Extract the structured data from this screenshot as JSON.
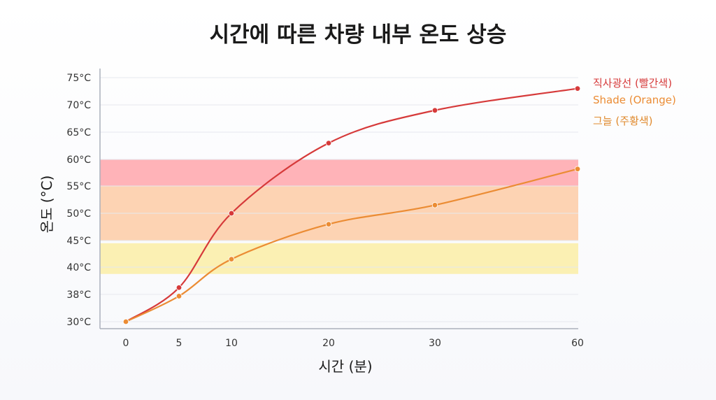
{
  "chart_data": {
    "type": "line",
    "title": "시간에 따른 차량 내부 온도 상승",
    "xlabel": "시간 (분)",
    "ylabel": "온도 (°C)",
    "x": [
      0,
      5,
      10,
      20,
      30,
      60
    ],
    "x_tick_labels": [
      "0",
      "5",
      "10",
      "20",
      "30",
      "60"
    ],
    "y_tick_labels": [
      "30°C",
      "38°C",
      "40°C",
      "45°C",
      "50°C",
      "55°C",
      "60°C",
      "65°C",
      "70°C",
      "75°C"
    ],
    "series": [
      {
        "name": "직사광선 (빨간색)",
        "color": "#d63a3a",
        "values": [
          30,
          38.5,
          50,
          63,
          69,
          73
        ]
      },
      {
        "name": "Shade (Orange)",
        "color": "#eb8c34",
        "values": [
          30,
          37.5,
          41.5,
          48,
          51.5,
          58.2
        ]
      }
    ],
    "legend_extra": {
      "name": "그늘 (주황색)",
      "color": "#e08a2e"
    },
    "bands": [
      {
        "from": 55,
        "to": 60,
        "color": "#ffb3b8"
      },
      {
        "from": 45,
        "to": 55,
        "color": "#fdd3b3"
      },
      {
        "from": 39.5,
        "to": 44.5,
        "color": "#fbf0b3"
      }
    ],
    "legend_position": "right",
    "grid": true
  }
}
